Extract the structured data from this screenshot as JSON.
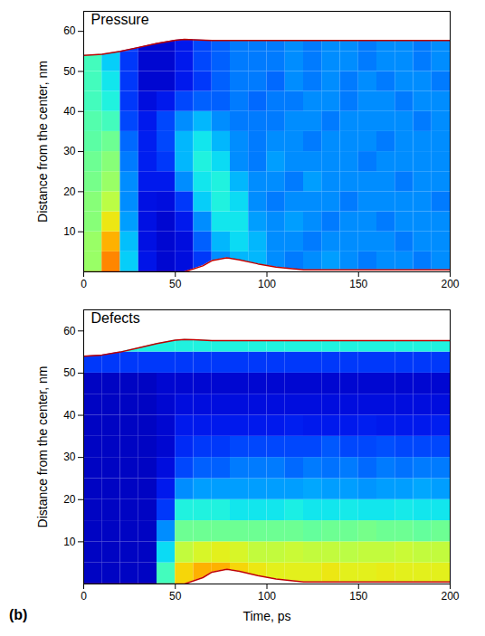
{
  "chart_data": [
    {
      "type": "heatmap",
      "title": "Pressure",
      "y_label": "Distance from the center, nm",
      "xlim": [
        0,
        200
      ],
      "xticks": [
        0,
        50,
        100,
        150,
        200
      ],
      "ylim": [
        0,
        65
      ],
      "yticks": [
        10,
        20,
        30,
        40,
        50,
        60
      ],
      "zlim": [
        0,
        1
      ],
      "x_bins": [
        0,
        10,
        20,
        30,
        40,
        50,
        60,
        70,
        80,
        90,
        100,
        110,
        120,
        130,
        140,
        150,
        160,
        170,
        180,
        190,
        200
      ],
      "y_bins": [
        0,
        5,
        10,
        15,
        20,
        25,
        30,
        35,
        40,
        45,
        50,
        55,
        60
      ],
      "cells": [
        [
          0.6,
          0.6,
          0.58,
          0.58,
          0.56,
          0.55,
          0.53,
          0.52,
          0.5,
          0.5,
          0.5,
          0.5
        ],
        [
          0.85,
          0.8,
          0.72,
          0.64,
          0.6,
          0.58,
          0.55,
          0.5,
          0.45,
          0.42,
          0.38,
          0.38
        ],
        [
          0.38,
          0.36,
          0.32,
          0.3,
          0.3,
          0.28,
          0.26,
          0.22,
          0.2,
          0.2,
          0.2,
          0.2
        ],
        [
          0.14,
          0.13,
          0.13,
          0.13,
          0.15,
          0.16,
          0.16,
          0.15,
          0.12,
          0.1,
          0.1,
          0.1
        ],
        [
          0.1,
          0.1,
          0.1,
          0.12,
          0.15,
          0.2,
          0.22,
          0.22,
          0.15,
          0.1,
          0.1,
          0.1
        ],
        [
          0.12,
          0.12,
          0.15,
          0.2,
          0.3,
          0.35,
          0.35,
          0.3,
          0.22,
          0.15,
          0.15,
          0.15
        ],
        [
          0.2,
          0.25,
          0.3,
          0.38,
          0.42,
          0.45,
          0.42,
          0.35,
          0.25,
          0.2,
          0.22,
          0.22
        ],
        [
          0.3,
          0.35,
          0.42,
          0.45,
          0.45,
          0.4,
          0.35,
          0.3,
          0.25,
          0.25,
          0.25,
          0.25
        ],
        [
          0.35,
          0.4,
          0.42,
          0.4,
          0.35,
          0.3,
          0.3,
          0.28,
          0.28,
          0.28,
          0.28,
          0.28
        ],
        [
          0.35,
          0.35,
          0.32,
          0.3,
          0.3,
          0.28,
          0.28,
          0.28,
          0.26,
          0.28,
          0.28,
          0.28
        ],
        [
          0.3,
          0.3,
          0.3,
          0.28,
          0.3,
          0.32,
          0.3,
          0.28,
          0.28,
          0.26,
          0.28,
          0.28
        ],
        [
          0.28,
          0.3,
          0.32,
          0.3,
          0.28,
          0.3,
          0.3,
          0.3,
          0.28,
          0.3,
          0.3,
          0.3
        ],
        [
          0.3,
          0.28,
          0.3,
          0.3,
          0.32,
          0.3,
          0.28,
          0.3,
          0.3,
          0.28,
          0.28,
          0.28
        ],
        [
          0.32,
          0.3,
          0.28,
          0.3,
          0.3,
          0.3,
          0.3,
          0.28,
          0.3,
          0.3,
          0.3,
          0.3
        ],
        [
          0.3,
          0.3,
          0.3,
          0.28,
          0.3,
          0.3,
          0.3,
          0.3,
          0.28,
          0.28,
          0.3,
          0.3
        ],
        [
          0.28,
          0.3,
          0.3,
          0.3,
          0.3,
          0.28,
          0.3,
          0.3,
          0.3,
          0.3,
          0.28,
          0.28
        ],
        [
          0.3,
          0.3,
          0.28,
          0.3,
          0.3,
          0.3,
          0.28,
          0.3,
          0.3,
          0.28,
          0.3,
          0.3
        ],
        [
          0.3,
          0.28,
          0.3,
          0.3,
          0.28,
          0.3,
          0.3,
          0.3,
          0.28,
          0.3,
          0.3,
          0.3
        ],
        [
          0.28,
          0.3,
          0.3,
          0.3,
          0.3,
          0.3,
          0.3,
          0.28,
          0.3,
          0.3,
          0.28,
          0.28
        ],
        [
          0.3,
          0.3,
          0.3,
          0.28,
          0.3,
          0.3,
          0.3,
          0.3,
          0.3,
          0.28,
          0.3,
          0.3
        ]
      ],
      "surface": {
        "color": "#c00000",
        "x": [
          0,
          10,
          20,
          30,
          40,
          50,
          55,
          60,
          70,
          80,
          90,
          100,
          120,
          150,
          200
        ],
        "values": [
          54,
          54.3,
          55,
          56,
          57,
          57.8,
          58,
          57.9,
          57.7,
          57.7,
          57.7,
          57.7,
          57.7,
          57.7,
          57.7
        ]
      },
      "void": {
        "color": "#c00000",
        "x": [
          0,
          55,
          65,
          70,
          78,
          85,
          95,
          105,
          120,
          200
        ],
        "values": [
          0,
          0,
          1.5,
          2.8,
          3.5,
          3,
          2,
          1.2,
          0.5,
          0.5
        ]
      }
    },
    {
      "type": "heatmap",
      "title": "Defects",
      "y_label": "Distance from the center, nm",
      "x_label": "Time, ps",
      "panel_label": "(b)",
      "xlim": [
        0,
        200
      ],
      "xticks": [
        0,
        50,
        100,
        150,
        200
      ],
      "ylim": [
        0,
        65
      ],
      "yticks": [
        10,
        20,
        30,
        40,
        50,
        60
      ],
      "zlim": [
        0,
        1
      ],
      "x_bins": [
        0,
        10,
        20,
        30,
        40,
        50,
        60,
        70,
        80,
        90,
        100,
        110,
        120,
        130,
        140,
        150,
        160,
        170,
        180,
        190,
        200
      ],
      "y_bins": [
        0,
        5,
        10,
        15,
        20,
        25,
        30,
        35,
        40,
        45,
        50,
        55,
        60
      ],
      "cells": [
        [
          0.08,
          0.08,
          0.08,
          0.08,
          0.08,
          0.08,
          0.08,
          0.08,
          0.08,
          0.08,
          0.2,
          0.45
        ],
        [
          0.08,
          0.08,
          0.08,
          0.08,
          0.08,
          0.08,
          0.08,
          0.08,
          0.08,
          0.08,
          0.2,
          0.45
        ],
        [
          0.08,
          0.08,
          0.08,
          0.08,
          0.08,
          0.08,
          0.08,
          0.08,
          0.08,
          0.08,
          0.2,
          0.45
        ],
        [
          0.08,
          0.08,
          0.08,
          0.08,
          0.08,
          0.08,
          0.08,
          0.08,
          0.08,
          0.08,
          0.2,
          0.45
        ],
        [
          0.5,
          0.4,
          0.3,
          0.2,
          0.15,
          0.12,
          0.1,
          0.1,
          0.1,
          0.1,
          0.2,
          0.45
        ],
        [
          0.75,
          0.65,
          0.55,
          0.45,
          0.3,
          0.22,
          0.18,
          0.15,
          0.12,
          0.1,
          0.2,
          0.45
        ],
        [
          0.8,
          0.68,
          0.55,
          0.45,
          0.32,
          0.25,
          0.2,
          0.15,
          0.12,
          0.1,
          0.2,
          0.45
        ],
        [
          0.8,
          0.7,
          0.55,
          0.45,
          0.32,
          0.25,
          0.2,
          0.15,
          0.12,
          0.1,
          0.2,
          0.45
        ],
        [
          0.75,
          0.68,
          0.55,
          0.42,
          0.32,
          0.28,
          0.22,
          0.15,
          0.12,
          0.1,
          0.2,
          0.45
        ],
        [
          0.72,
          0.65,
          0.55,
          0.42,
          0.32,
          0.28,
          0.22,
          0.15,
          0.12,
          0.1,
          0.2,
          0.45
        ],
        [
          0.7,
          0.65,
          0.55,
          0.42,
          0.32,
          0.28,
          0.22,
          0.15,
          0.12,
          0.1,
          0.2,
          0.45
        ],
        [
          0.7,
          0.66,
          0.55,
          0.44,
          0.32,
          0.26,
          0.22,
          0.16,
          0.12,
          0.1,
          0.2,
          0.45
        ],
        [
          0.7,
          0.65,
          0.54,
          0.42,
          0.33,
          0.28,
          0.22,
          0.15,
          0.12,
          0.1,
          0.2,
          0.45
        ],
        [
          0.72,
          0.65,
          0.55,
          0.42,
          0.32,
          0.27,
          0.24,
          0.15,
          0.12,
          0.1,
          0.2,
          0.45
        ],
        [
          0.7,
          0.64,
          0.55,
          0.43,
          0.32,
          0.28,
          0.22,
          0.15,
          0.12,
          0.1,
          0.2,
          0.45
        ],
        [
          0.7,
          0.65,
          0.56,
          0.42,
          0.31,
          0.26,
          0.22,
          0.16,
          0.12,
          0.1,
          0.2,
          0.45
        ],
        [
          0.71,
          0.65,
          0.55,
          0.42,
          0.32,
          0.28,
          0.23,
          0.15,
          0.12,
          0.1,
          0.2,
          0.45
        ],
        [
          0.7,
          0.66,
          0.55,
          0.43,
          0.32,
          0.27,
          0.22,
          0.15,
          0.12,
          0.1,
          0.2,
          0.45
        ],
        [
          0.7,
          0.65,
          0.54,
          0.42,
          0.33,
          0.28,
          0.22,
          0.15,
          0.12,
          0.1,
          0.2,
          0.45
        ],
        [
          0.7,
          0.65,
          0.55,
          0.42,
          0.32,
          0.28,
          0.22,
          0.16,
          0.12,
          0.1,
          0.2,
          0.45
        ]
      ],
      "surface": {
        "color": "#c00000",
        "x": [
          0,
          10,
          20,
          30,
          40,
          50,
          55,
          60,
          70,
          80,
          90,
          100,
          120,
          150,
          200
        ],
        "values": [
          54,
          54.3,
          55,
          56,
          57,
          57.8,
          58,
          57.9,
          57.7,
          57.7,
          57.7,
          57.7,
          57.7,
          57.7,
          57.7
        ]
      },
      "void": {
        "color": "#c00000",
        "x": [
          0,
          55,
          65,
          70,
          78,
          85,
          95,
          105,
          120,
          200
        ],
        "values": [
          0,
          0,
          1.5,
          2.8,
          3.5,
          3,
          2,
          1.2,
          0.5,
          0.5
        ]
      }
    }
  ]
}
